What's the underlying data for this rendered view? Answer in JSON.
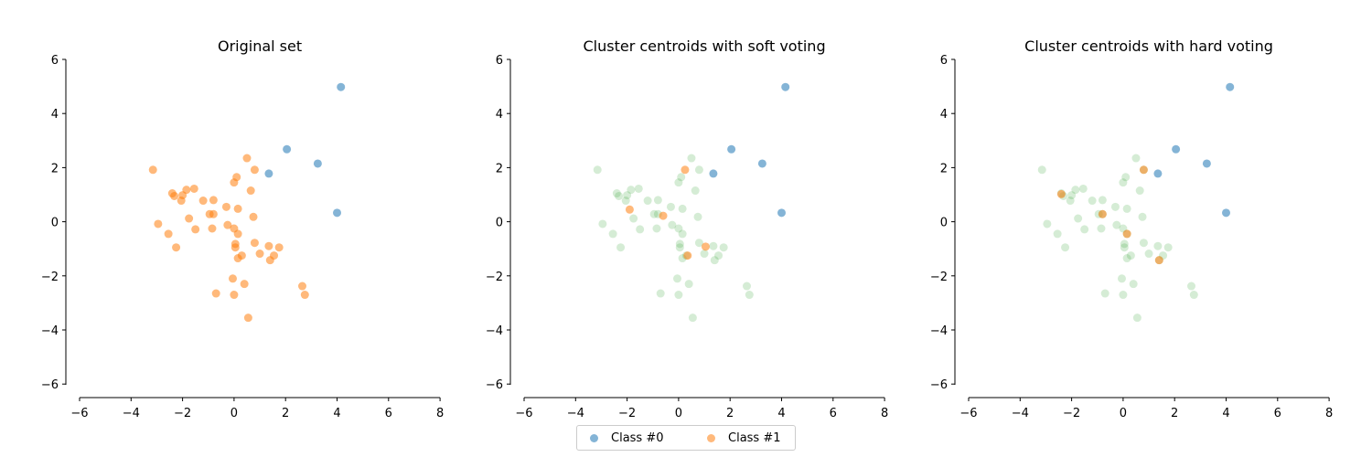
{
  "colors": {
    "class0": "#1f77b4",
    "class1": "#ff7f0e",
    "background_points": "#2ca02c"
  },
  "legend": {
    "items": [
      {
        "label": "Class #0",
        "color": "#1f77b4"
      },
      {
        "label": "Class #1",
        "color": "#ff7f0e"
      }
    ],
    "placement": "bottom-center"
  },
  "chart_data": [
    {
      "type": "scatter",
      "title": "Original set",
      "xlim": [
        -6,
        8
      ],
      "ylim": [
        -6,
        6
      ],
      "xticks": [
        -6,
        -4,
        -2,
        0,
        2,
        4,
        6,
        8
      ],
      "yticks": [
        -6,
        -4,
        -2,
        0,
        2,
        4,
        6
      ],
      "grid": false,
      "series": [
        {
          "name": "Class #0",
          "color": "#1f77b4",
          "alpha": 0.55,
          "points": [
            [
              4.15,
              4.98
            ],
            [
              2.05,
              2.68
            ],
            [
              3.25,
              2.15
            ],
            [
              1.35,
              1.78
            ],
            [
              4.0,
              0.33
            ]
          ]
        },
        {
          "name": "Class #1",
          "color": "#ff7f0e",
          "alpha": 0.55,
          "points": [
            [
              -3.15,
              1.92
            ],
            [
              -2.4,
              1.05
            ],
            [
              -2.32,
              0.95
            ],
            [
              -2.05,
              0.78
            ],
            [
              -2.0,
              0.98
            ],
            [
              -1.85,
              1.18
            ],
            [
              -1.55,
              1.22
            ],
            [
              -1.2,
              0.78
            ],
            [
              -0.8,
              0.8
            ],
            [
              -0.95,
              0.28
            ],
            [
              -0.8,
              0.28
            ],
            [
              -0.3,
              0.55
            ],
            [
              0.0,
              1.45
            ],
            [
              0.1,
              1.65
            ],
            [
              0.5,
              2.35
            ],
            [
              0.8,
              1.92
            ],
            [
              0.65,
              1.15
            ],
            [
              0.75,
              0.18
            ],
            [
              0.15,
              0.48
            ],
            [
              -1.75,
              0.12
            ],
            [
              -2.95,
              -0.08
            ],
            [
              -2.55,
              -0.45
            ],
            [
              -2.25,
              -0.95
            ],
            [
              -1.5,
              -0.28
            ],
            [
              -0.85,
              -0.25
            ],
            [
              -0.25,
              -0.12
            ],
            [
              0.0,
              -0.25
            ],
            [
              0.15,
              -0.45
            ],
            [
              0.05,
              -0.82
            ],
            [
              0.05,
              -0.95
            ],
            [
              0.3,
              -1.25
            ],
            [
              0.15,
              -1.35
            ],
            [
              0.8,
              -0.78
            ],
            [
              1.0,
              -1.18
            ],
            [
              1.35,
              -0.9
            ],
            [
              1.75,
              -0.95
            ],
            [
              1.55,
              -1.25
            ],
            [
              1.4,
              -1.42
            ],
            [
              -0.05,
              -2.1
            ],
            [
              0.4,
              -2.3
            ],
            [
              -0.7,
              -2.65
            ],
            [
              0.0,
              -2.7
            ],
            [
              2.65,
              -2.38
            ],
            [
              2.75,
              -2.7
            ],
            [
              0.55,
              -3.55
            ]
          ]
        }
      ]
    },
    {
      "type": "scatter",
      "title": "Cluster centroids with soft voting",
      "xlim": [
        -6,
        8
      ],
      "ylim": [
        -6,
        6
      ],
      "xticks": [
        -6,
        -4,
        -2,
        0,
        2,
        4,
        6,
        8
      ],
      "yticks": [
        -6,
        -4,
        -2,
        0,
        2,
        4,
        6
      ],
      "grid": false,
      "series": [
        {
          "name": "Class #0",
          "color": "#1f77b4",
          "alpha": 0.55,
          "points": [
            [
              4.15,
              4.98
            ],
            [
              2.05,
              2.68
            ],
            [
              3.25,
              2.15
            ],
            [
              1.35,
              1.78
            ],
            [
              4.0,
              0.33
            ]
          ]
        },
        {
          "name": "Class #1",
          "color": "#ff7f0e",
          "alpha": 0.55,
          "points": [
            [
              0.25,
              1.92
            ],
            [
              -1.9,
              0.45
            ],
            [
              -0.6,
              0.22
            ],
            [
              1.05,
              -0.92
            ],
            [
              0.35,
              -1.25
            ]
          ]
        },
        {
          "name": "",
          "color": "#2ca02c",
          "alpha": 0.2,
          "points": [
            [
              -3.15,
              1.92
            ],
            [
              -2.4,
              1.05
            ],
            [
              -2.32,
              0.95
            ],
            [
              -2.05,
              0.78
            ],
            [
              -2.0,
              0.98
            ],
            [
              -1.85,
              1.18
            ],
            [
              -1.55,
              1.22
            ],
            [
              -1.2,
              0.78
            ],
            [
              -0.8,
              0.8
            ],
            [
              -0.95,
              0.28
            ],
            [
              -0.8,
              0.28
            ],
            [
              -0.3,
              0.55
            ],
            [
              0.0,
              1.45
            ],
            [
              0.1,
              1.65
            ],
            [
              0.5,
              2.35
            ],
            [
              0.8,
              1.92
            ],
            [
              0.65,
              1.15
            ],
            [
              0.75,
              0.18
            ],
            [
              0.15,
              0.48
            ],
            [
              -1.75,
              0.12
            ],
            [
              -2.95,
              -0.08
            ],
            [
              -2.55,
              -0.45
            ],
            [
              -2.25,
              -0.95
            ],
            [
              -1.5,
              -0.28
            ],
            [
              -0.85,
              -0.25
            ],
            [
              -0.25,
              -0.12
            ],
            [
              0.0,
              -0.25
            ],
            [
              0.15,
              -0.45
            ],
            [
              0.05,
              -0.82
            ],
            [
              0.05,
              -0.95
            ],
            [
              0.3,
              -1.25
            ],
            [
              0.15,
              -1.35
            ],
            [
              0.8,
              -0.78
            ],
            [
              1.0,
              -1.18
            ],
            [
              1.35,
              -0.9
            ],
            [
              1.75,
              -0.95
            ],
            [
              1.55,
              -1.25
            ],
            [
              1.4,
              -1.42
            ],
            [
              -0.05,
              -2.1
            ],
            [
              0.4,
              -2.3
            ],
            [
              -0.7,
              -2.65
            ],
            [
              0.0,
              -2.7
            ],
            [
              2.65,
              -2.38
            ],
            [
              2.75,
              -2.7
            ],
            [
              0.55,
              -3.55
            ]
          ]
        }
      ]
    },
    {
      "type": "scatter",
      "title": "Cluster centroids with hard voting",
      "xlim": [
        -6,
        8
      ],
      "ylim": [
        -6,
        6
      ],
      "xticks": [
        -6,
        -4,
        -2,
        0,
        2,
        4,
        6,
        8
      ],
      "yticks": [
        -6,
        -4,
        -2,
        0,
        2,
        4,
        6
      ],
      "grid": false,
      "series": [
        {
          "name": "Class #0",
          "color": "#1f77b4",
          "alpha": 0.55,
          "points": [
            [
              4.15,
              4.98
            ],
            [
              2.05,
              2.68
            ],
            [
              3.25,
              2.15
            ],
            [
              1.35,
              1.78
            ],
            [
              4.0,
              0.33
            ]
          ]
        },
        {
          "name": "Class #1",
          "color": "#ff7f0e",
          "alpha": 0.55,
          "points": [
            [
              0.8,
              1.92
            ],
            [
              -2.4,
              1.02
            ],
            [
              -0.8,
              0.28
            ],
            [
              0.15,
              -0.45
            ],
            [
              1.4,
              -1.42
            ]
          ]
        },
        {
          "name": "",
          "color": "#2ca02c",
          "alpha": 0.2,
          "points": [
            [
              -3.15,
              1.92
            ],
            [
              -2.4,
              1.05
            ],
            [
              -2.32,
              0.95
            ],
            [
              -2.05,
              0.78
            ],
            [
              -2.0,
              0.98
            ],
            [
              -1.85,
              1.18
            ],
            [
              -1.55,
              1.22
            ],
            [
              -1.2,
              0.78
            ],
            [
              -0.8,
              0.8
            ],
            [
              -0.95,
              0.28
            ],
            [
              -0.8,
              0.28
            ],
            [
              -0.3,
              0.55
            ],
            [
              0.0,
              1.45
            ],
            [
              0.1,
              1.65
            ],
            [
              0.5,
              2.35
            ],
            [
              0.8,
              1.92
            ],
            [
              0.65,
              1.15
            ],
            [
              0.75,
              0.18
            ],
            [
              0.15,
              0.48
            ],
            [
              -1.75,
              0.12
            ],
            [
              -2.95,
              -0.08
            ],
            [
              -2.55,
              -0.45
            ],
            [
              -2.25,
              -0.95
            ],
            [
              -1.5,
              -0.28
            ],
            [
              -0.85,
              -0.25
            ],
            [
              -0.25,
              -0.12
            ],
            [
              0.0,
              -0.25
            ],
            [
              0.15,
              -0.45
            ],
            [
              0.05,
              -0.82
            ],
            [
              0.05,
              -0.95
            ],
            [
              0.3,
              -1.25
            ],
            [
              0.15,
              -1.35
            ],
            [
              0.8,
              -0.78
            ],
            [
              1.0,
              -1.18
            ],
            [
              1.35,
              -0.9
            ],
            [
              1.75,
              -0.95
            ],
            [
              1.55,
              -1.25
            ],
            [
              1.4,
              -1.42
            ],
            [
              -0.05,
              -2.1
            ],
            [
              0.4,
              -2.3
            ],
            [
              -0.7,
              -2.65
            ],
            [
              0.0,
              -2.7
            ],
            [
              2.65,
              -2.38
            ],
            [
              2.75,
              -2.7
            ],
            [
              0.55,
              -3.55
            ]
          ]
        }
      ]
    }
  ]
}
